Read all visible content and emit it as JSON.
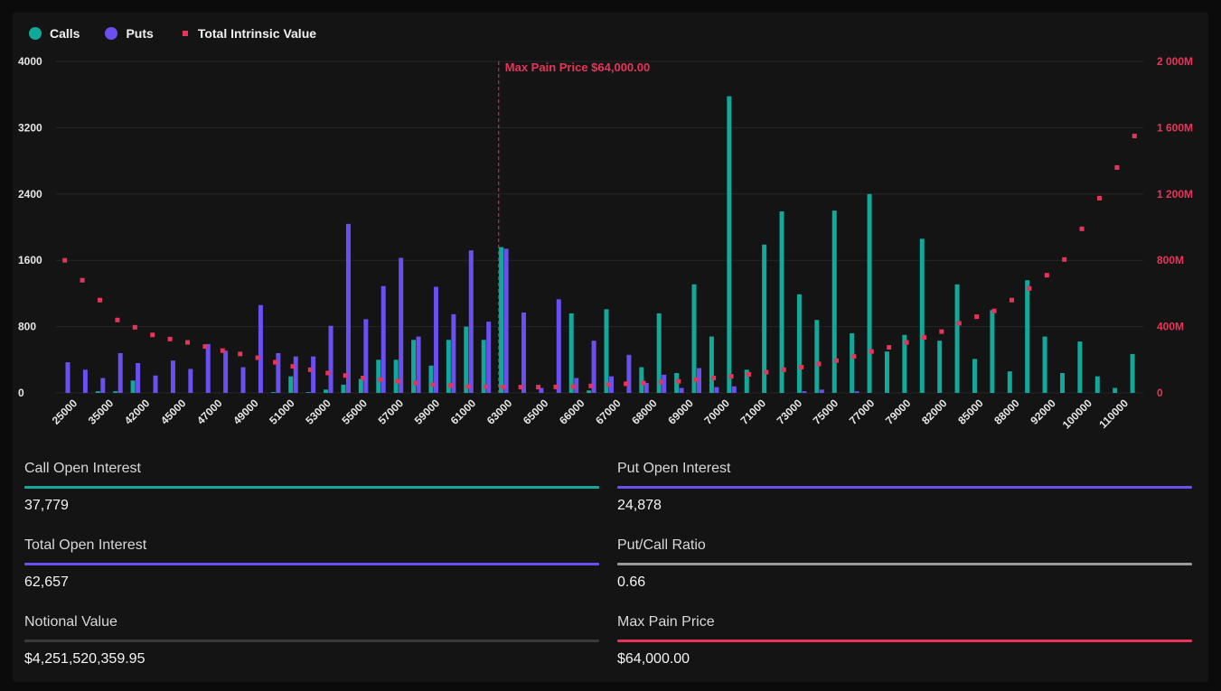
{
  "legend": {
    "calls_label": "Calls",
    "puts_label": "Puts",
    "tiv_label": "Total Intrinsic Value"
  },
  "colors": {
    "calls": "#12a89a",
    "puts": "#6b4ff0",
    "tiv": "#e8345a",
    "max_pain": "#e8345a",
    "grid": "#262626",
    "axis_text": "#e6e6e6"
  },
  "chart_data": {
    "type": "bar",
    "title": "",
    "y_left": {
      "label": "",
      "ylim": [
        0,
        4000
      ],
      "ticks": [
        "0",
        "800",
        "1600",
        "2400",
        "3200",
        "4000"
      ]
    },
    "y_right": {
      "label": "",
      "ylim": [
        0,
        2000
      ],
      "unit": "M",
      "ticks": [
        "0",
        "400M",
        "800M",
        "1 200M",
        "1 600M",
        "2 000M"
      ]
    },
    "x_tick_labels": [
      "25000",
      "35000",
      "42000",
      "45000",
      "47000",
      "49000",
      "51000",
      "53000",
      "55000",
      "57000",
      "59000",
      "61000",
      "63000",
      "65000",
      "66000",
      "67000",
      "68000",
      "69000",
      "70000",
      "71000",
      "73000",
      "75000",
      "77000",
      "79000",
      "82000",
      "85000",
      "88000",
      "92000",
      "100000",
      "110000"
    ],
    "max_pain": {
      "label": "Max Pain Price $64,000.00",
      "index": 25
    },
    "series": [
      {
        "name": "Calls",
        "values": [
          0,
          0,
          20,
          20,
          150,
          0,
          0,
          0,
          0,
          0,
          0,
          0,
          10,
          200,
          10,
          40,
          100,
          170,
          400,
          400,
          640,
          330,
          640,
          800,
          640,
          1760,
          0,
          0,
          0,
          960,
          30,
          1010,
          0,
          310,
          960,
          240,
          1310,
          680,
          3580,
          280,
          1790,
          2190,
          1190,
          880,
          2200,
          720,
          2400,
          500,
          700,
          1860,
          630,
          1310,
          410,
          1000,
          260,
          1360,
          680,
          240,
          620,
          200,
          60,
          470
        ]
      },
      {
        "name": "Puts",
        "values": [
          370,
          280,
          180,
          480,
          360,
          210,
          390,
          290,
          590,
          510,
          310,
          1060,
          480,
          440,
          440,
          810,
          2040,
          890,
          1290,
          1630,
          680,
          1280,
          950,
          1720,
          860,
          1740,
          970,
          60,
          1130,
          180,
          630,
          200,
          460,
          120,
          220,
          60,
          300,
          70,
          80,
          0,
          0,
          0,
          20,
          40,
          0,
          20,
          0,
          0,
          0,
          0,
          0,
          0,
          0,
          0,
          0,
          0,
          0,
          0,
          0,
          0,
          0,
          0
        ]
      },
      {
        "name": "Total Intrinsic Value",
        "values": [
          800,
          680,
          560,
          440,
          396,
          350,
          325,
          305,
          280,
          255,
          235,
          212,
          185,
          160,
          140,
          120,
          105,
          90,
          80,
          70,
          60,
          50,
          45,
          40,
          37,
          35,
          35,
          35,
          36,
          38,
          42,
          50,
          55,
          60,
          65,
          70,
          80,
          90,
          100,
          112,
          125,
          140,
          155,
          175,
          195,
          220,
          250,
          275,
          305,
          335,
          370,
          420,
          460,
          495,
          560,
          630,
          710,
          805,
          990,
          1175,
          1360,
          1550
        ]
      }
    ]
  },
  "stats": {
    "call_oi": {
      "label": "Call Open Interest",
      "value": "37,779"
    },
    "put_oi": {
      "label": "Put Open Interest",
      "value": "24,878"
    },
    "total_oi": {
      "label": "Total Open Interest",
      "value": "62,657"
    },
    "pc_ratio": {
      "label": "Put/Call Ratio",
      "value": "0.66"
    },
    "notional": {
      "label": "Notional Value",
      "value": "$4,251,520,359.95"
    },
    "max_pain": {
      "label": "Max Pain Price",
      "value": "$64,000.00"
    }
  },
  "rule_colors": {
    "call_oi": "#12a89a",
    "put_oi": "#6b4ff0",
    "total_oi": "#6b4ff0",
    "pc_ratio": "#9a9a9a",
    "notional": "#3a3a3a",
    "max_pain": "#e8345a"
  }
}
